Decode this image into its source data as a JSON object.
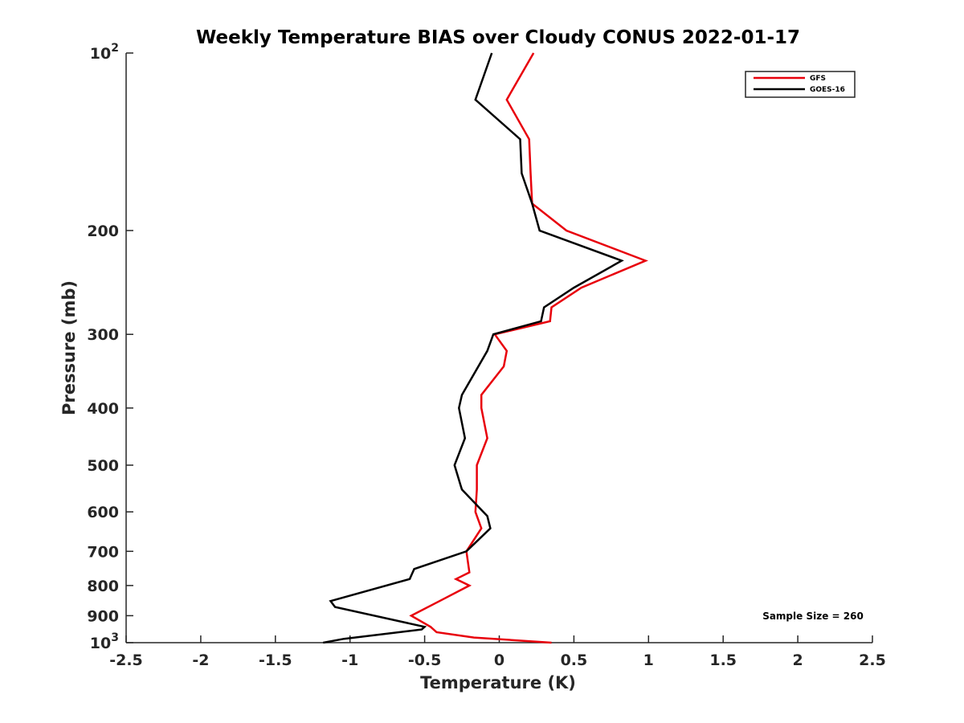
{
  "chart_data": {
    "type": "line",
    "title": "Weekly Temperature BIAS over Cloudy CONUS 2022-01-17",
    "xlabel": "Temperature (K)",
    "ylabel": "Pressure (mb)",
    "xlim": [
      -2.5,
      2.5
    ],
    "ylim": [
      100,
      1000
    ],
    "yscale": "log",
    "y_reversed": true,
    "grid": false,
    "legend_position": "top-right",
    "annotation": "Sample Size = 260",
    "x_ticks": [
      {
        "value": -2.5,
        "label": "-2.5"
      },
      {
        "value": -2,
        "label": "-2"
      },
      {
        "value": -1.5,
        "label": "-1.5"
      },
      {
        "value": -1,
        "label": "-1"
      },
      {
        "value": -0.5,
        "label": "-0.5"
      },
      {
        "value": 0,
        "label": "0"
      },
      {
        "value": 0.5,
        "label": "0.5"
      },
      {
        "value": 1,
        "label": "1"
      },
      {
        "value": 1.5,
        "label": "1.5"
      },
      {
        "value": 2,
        "label": "2"
      },
      {
        "value": 2.5,
        "label": "2.5"
      }
    ],
    "y_ticks": [
      {
        "value": 100,
        "label": "10",
        "sup": "2"
      },
      {
        "value": 200,
        "label": "200"
      },
      {
        "value": 300,
        "label": "300"
      },
      {
        "value": 400,
        "label": "400"
      },
      {
        "value": 500,
        "label": "500"
      },
      {
        "value": 600,
        "label": "600"
      },
      {
        "value": 700,
        "label": "700"
      },
      {
        "value": 800,
        "label": "800"
      },
      {
        "value": 900,
        "label": "900"
      },
      {
        "value": 1000,
        "label": "10",
        "sup": "3"
      }
    ],
    "series": [
      {
        "name": "GFS",
        "color": "#e8000b",
        "points": [
          [
            0.23,
            100
          ],
          [
            0.05,
            120
          ],
          [
            0.2,
            140
          ],
          [
            0.21,
            160
          ],
          [
            0.22,
            180
          ],
          [
            0.45,
            200
          ],
          [
            0.98,
            225
          ],
          [
            0.55,
            250
          ],
          [
            0.35,
            270
          ],
          [
            0.34,
            285
          ],
          [
            -0.03,
            300
          ],
          [
            0.05,
            320
          ],
          [
            0.03,
            340
          ],
          [
            -0.12,
            380
          ],
          [
            -0.12,
            400
          ],
          [
            -0.08,
            450
          ],
          [
            -0.15,
            500
          ],
          [
            -0.15,
            550
          ],
          [
            -0.16,
            600
          ],
          [
            -0.12,
            640
          ],
          [
            -0.22,
            700
          ],
          [
            -0.2,
            760
          ],
          [
            -0.29,
            780
          ],
          [
            -0.2,
            800
          ],
          [
            -0.4,
            850
          ],
          [
            -0.59,
            900
          ],
          [
            -0.46,
            940
          ],
          [
            -0.42,
            960
          ],
          [
            -0.17,
            980
          ],
          [
            0.35,
            1000
          ]
        ]
      },
      {
        "name": "GOES-16",
        "color": "#000000",
        "points": [
          [
            -0.05,
            100
          ],
          [
            -0.16,
            120
          ],
          [
            0.14,
            140
          ],
          [
            0.15,
            160
          ],
          [
            0.22,
            180
          ],
          [
            0.27,
            200
          ],
          [
            0.82,
            225
          ],
          [
            0.5,
            250
          ],
          [
            0.3,
            270
          ],
          [
            0.28,
            285
          ],
          [
            -0.04,
            300
          ],
          [
            -0.08,
            320
          ],
          [
            -0.25,
            380
          ],
          [
            -0.27,
            400
          ],
          [
            -0.23,
            450
          ],
          [
            -0.3,
            500
          ],
          [
            -0.26,
            540
          ],
          [
            -0.25,
            550
          ],
          [
            -0.08,
            610
          ],
          [
            -0.06,
            640
          ],
          [
            -0.22,
            700
          ],
          [
            -0.57,
            750
          ],
          [
            -0.6,
            780
          ],
          [
            -1.13,
            850
          ],
          [
            -1.1,
            870
          ],
          [
            -0.5,
            940
          ],
          [
            -0.52,
            950
          ],
          [
            -1.04,
            985
          ],
          [
            -1.18,
            1000
          ]
        ]
      }
    ]
  }
}
